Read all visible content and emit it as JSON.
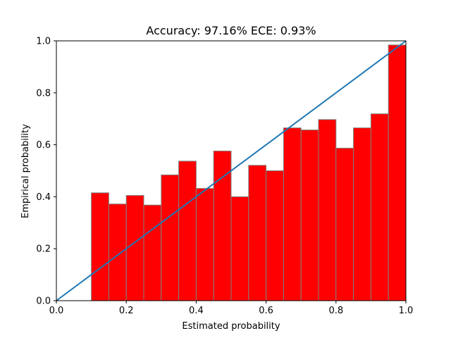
{
  "chart_data": {
    "type": "bar",
    "title": "Accuracy: 97.16% ECE: 0.93%",
    "xlabel": "Estimated probability",
    "ylabel": "Empirical probability",
    "xlim": [
      0.0,
      1.0
    ],
    "ylim": [
      0.0,
      1.0
    ],
    "grid": false,
    "xticks": [
      "0.0",
      "0.2",
      "0.4",
      "0.6",
      "0.8",
      "1.0"
    ],
    "yticks": [
      "0.0",
      "0.2",
      "0.4",
      "0.6",
      "0.8",
      "1.0"
    ],
    "bins": [
      {
        "x0": 0.1,
        "x1": 0.15,
        "value": 0.415
      },
      {
        "x0": 0.15,
        "x1": 0.2,
        "value": 0.372
      },
      {
        "x0": 0.2,
        "x1": 0.25,
        "value": 0.405
      },
      {
        "x0": 0.25,
        "x1": 0.3,
        "value": 0.368
      },
      {
        "x0": 0.3,
        "x1": 0.35,
        "value": 0.484
      },
      {
        "x0": 0.35,
        "x1": 0.4,
        "value": 0.537
      },
      {
        "x0": 0.4,
        "x1": 0.45,
        "value": 0.432
      },
      {
        "x0": 0.45,
        "x1": 0.5,
        "value": 0.576
      },
      {
        "x0": 0.5,
        "x1": 0.55,
        "value": 0.4
      },
      {
        "x0": 0.55,
        "x1": 0.6,
        "value": 0.521
      },
      {
        "x0": 0.6,
        "x1": 0.65,
        "value": 0.5
      },
      {
        "x0": 0.65,
        "x1": 0.7,
        "value": 0.665
      },
      {
        "x0": 0.7,
        "x1": 0.75,
        "value": 0.657
      },
      {
        "x0": 0.75,
        "x1": 0.8,
        "value": 0.697
      },
      {
        "x0": 0.8,
        "x1": 0.85,
        "value": 0.587
      },
      {
        "x0": 0.85,
        "x1": 0.9,
        "value": 0.665
      },
      {
        "x0": 0.9,
        "x1": 0.95,
        "value": 0.719
      },
      {
        "x0": 0.95,
        "x1": 1.0,
        "value": 0.984
      }
    ],
    "reference_line": {
      "x": [
        0.0,
        1.0
      ],
      "y": [
        0.0,
        1.0
      ]
    },
    "colors": {
      "bar_fill": "#ff0000",
      "bar_edge": "#808080",
      "reference_line": "#1f77b4",
      "axes": "#000000"
    }
  }
}
